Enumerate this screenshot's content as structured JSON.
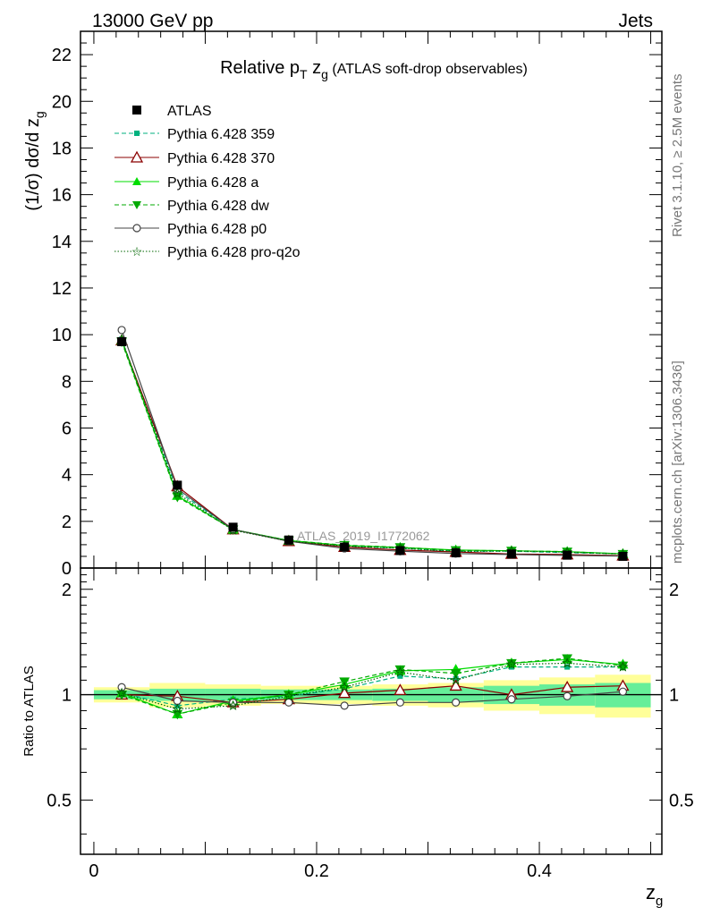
{
  "header": {
    "left": "13000 GeV pp",
    "right": "Jets"
  },
  "title": {
    "main": "Relative p",
    "sub": "T",
    "var": " z",
    "varsub": "g",
    "rest": " (ATLAS soft-drop observables)"
  },
  "side_right_top": "Rivet 3.1.10, ≥ 2.5M events",
  "side_right_bottom": "mcplots.cern.ch [arXiv:1306.3436]",
  "watermark": "ATLAS_2019_I1772062",
  "ylabel_main": "(1/σ) dσ/d z",
  "ylabel_main_sub": "g",
  "ylabel_ratio": "Ratio to ATLAS",
  "xlabel": "z",
  "xlabel_sub": "g",
  "colors": {
    "atlas": "#000000",
    "p359": "#00b27f",
    "p370": "#8b0000",
    "pa": "#00dd00",
    "pdw": "#00aa00",
    "pp0": "#444444",
    "pq2o": "#006600",
    "band_outer": "#ffff99",
    "band_inner": "#66ee99"
  },
  "chart_data": {
    "type": "line",
    "x": [
      0.025,
      0.075,
      0.125,
      0.175,
      0.225,
      0.275,
      0.325,
      0.375,
      0.425,
      0.475
    ],
    "xlim": [
      -0.012,
      0.51
    ],
    "ylim_main": [
      0,
      23
    ],
    "ylim_ratio": [
      0.35,
      2.3
    ],
    "xticks": [
      0,
      0.2,
      0.4
    ],
    "yticks_main": [
      0,
      2,
      4,
      6,
      8,
      10,
      12,
      14,
      16,
      18,
      20,
      22
    ],
    "yticks_ratio": [
      0.5,
      1,
      2
    ],
    "legend_position": "top-left",
    "atlas": {
      "name": "ATLAS",
      "values": [
        9.7,
        3.55,
        1.75,
        1.2,
        0.9,
        0.75,
        0.65,
        0.6,
        0.55,
        0.5
      ]
    },
    "band_outer": [
      0.05,
      0.08,
      0.07,
      0.06,
      0.06,
      0.07,
      0.08,
      0.1,
      0.12,
      0.14
    ],
    "band_inner": [
      0.03,
      0.04,
      0.04,
      0.035,
      0.035,
      0.04,
      0.05,
      0.06,
      0.07,
      0.08
    ],
    "series": [
      {
        "key": "p359",
        "name": "Pythia 6.428 359",
        "values": [
          9.8,
          3.3,
          1.65,
          1.15,
          0.94,
          0.85,
          0.72,
          0.72,
          0.66,
          0.6
        ],
        "ratio": [
          1.01,
          0.93,
          0.97,
          0.99,
          1.04,
          1.13,
          1.11,
          1.2,
          1.2,
          1.2
        ]
      },
      {
        "key": "p370",
        "name": "Pythia 6.428 370",
        "values": [
          9.75,
          3.5,
          1.65,
          1.15,
          0.9,
          0.77,
          0.69,
          0.6,
          0.58,
          0.53
        ],
        "ratio": [
          1.0,
          0.99,
          0.95,
          0.97,
          1.01,
          1.03,
          1.06,
          1.0,
          1.05,
          1.06
        ]
      },
      {
        "key": "pa",
        "name": "Pythia 6.428 a",
        "values": [
          9.75,
          3.1,
          1.65,
          1.18,
          0.97,
          0.88,
          0.77,
          0.74,
          0.7,
          0.61
        ],
        "ratio": [
          1.01,
          0.88,
          0.96,
          1.0,
          1.07,
          1.17,
          1.18,
          1.23,
          1.26,
          1.22
        ]
      },
      {
        "key": "pdw",
        "name": "Pythia 6.428 dw",
        "values": [
          9.7,
          3.05,
          1.65,
          1.18,
          0.98,
          0.89,
          0.76,
          0.74,
          0.7,
          0.6
        ],
        "ratio": [
          1.0,
          0.88,
          0.95,
          1.0,
          1.09,
          1.18,
          1.15,
          1.23,
          1.27,
          1.21
        ]
      },
      {
        "key": "pp0",
        "name": "Pythia 6.428 p0",
        "values": [
          10.2,
          3.4,
          1.65,
          1.15,
          0.84,
          0.72,
          0.62,
          0.58,
          0.54,
          0.51
        ],
        "ratio": [
          1.05,
          0.96,
          0.95,
          0.95,
          0.93,
          0.95,
          0.95,
          0.97,
          0.99,
          1.02
        ]
      },
      {
        "key": "pq2o",
        "name": "Pythia 6.428 pro-q2o",
        "values": [
          9.8,
          3.2,
          1.62,
          1.15,
          0.94,
          0.85,
          0.71,
          0.73,
          0.68,
          0.6
        ],
        "ratio": [
          1.01,
          0.91,
          0.93,
          0.99,
          1.05,
          1.16,
          1.1,
          1.22,
          1.23,
          1.2
        ]
      }
    ]
  },
  "legend_atlas": "ATLAS"
}
